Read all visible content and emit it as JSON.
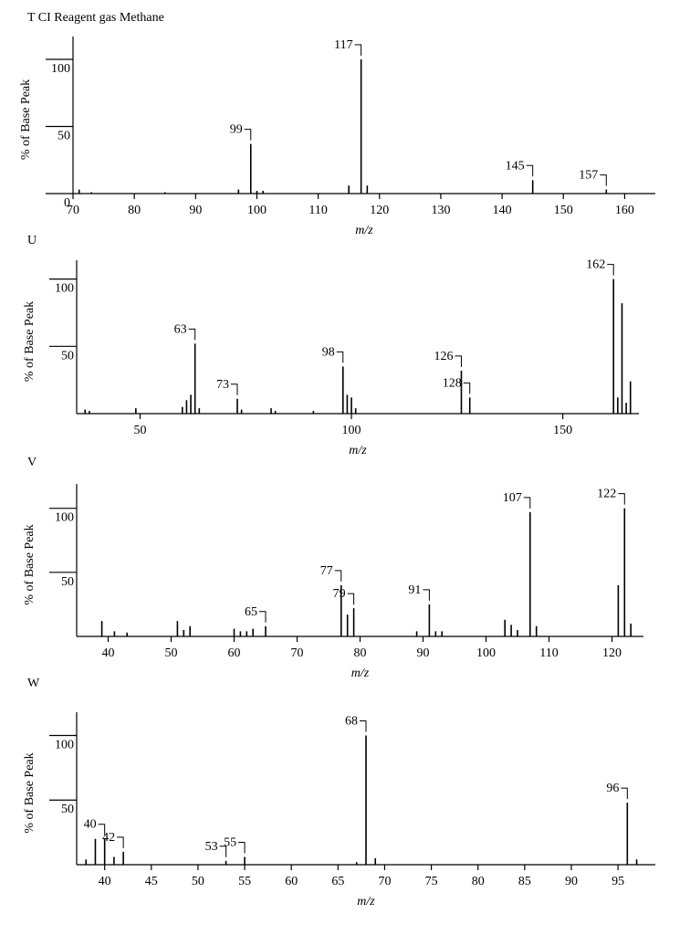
{
  "chart_data": [
    {
      "type": "bar",
      "title": "T CI Reagent gas Methane",
      "xlabel": "m/z",
      "ylabel": "% of Base Peak",
      "color": "#000000",
      "x": [
        71,
        73,
        85,
        97,
        99,
        100,
        101,
        115,
        117,
        118,
        145,
        157
      ],
      "values": [
        3,
        1,
        1,
        3,
        37,
        2,
        2,
        6,
        100,
        6,
        10,
        3
      ],
      "annotations": [
        99,
        117,
        145,
        157
      ],
      "xlim": [
        70,
        165
      ],
      "xticks": [
        70,
        80,
        90,
        100,
        110,
        120,
        130,
        140,
        150,
        160
      ],
      "ylim": [
        0,
        117
      ],
      "yticks": [
        0,
        50,
        100
      ]
    },
    {
      "type": "bar",
      "title": "U",
      "xlabel": "m/z",
      "ylabel": "% of Base Peak",
      "color": "#000000",
      "x": [
        37,
        38,
        49,
        60,
        61,
        62,
        63,
        64,
        73,
        74,
        81,
        82,
        91,
        98,
        99,
        100,
        101,
        126,
        128,
        162,
        163,
        164,
        165,
        166
      ],
      "values": [
        3,
        2,
        4,
        5,
        10,
        14,
        52,
        4,
        11,
        3,
        4,
        2,
        2,
        35,
        14,
        12,
        4,
        32,
        12,
        100,
        12,
        82,
        8,
        24
      ],
      "annotations": [
        63,
        73,
        98,
        126,
        128,
        162
      ],
      "xlim": [
        35,
        168
      ],
      "xticks": [
        50,
        100,
        150
      ],
      "ylim": [
        0,
        114
      ],
      "yticks": [
        50,
        100
      ]
    },
    {
      "type": "bar",
      "title": "V",
      "xlabel": "m/z",
      "ylabel": "% of Base Peak",
      "color": "#000000",
      "x": [
        39,
        41,
        43,
        51,
        52,
        53,
        60,
        61,
        62,
        63,
        65,
        77,
        78,
        79,
        89,
        91,
        92,
        93,
        103,
        104,
        105,
        107,
        108,
        121,
        122,
        123
      ],
      "values": [
        12,
        4,
        3,
        12,
        5,
        8,
        6,
        4,
        4,
        6,
        8,
        40,
        17,
        22,
        4,
        25,
        4,
        4,
        13,
        9,
        5,
        97,
        8,
        40,
        100,
        10
      ],
      "annotations": [
        65,
        77,
        79,
        91,
        107,
        122
      ],
      "xlim": [
        35,
        125
      ],
      "xticks": [
        40,
        50,
        60,
        70,
        80,
        90,
        100,
        110,
        120
      ],
      "ylim": [
        0,
        119
      ],
      "yticks": [
        50,
        100
      ]
    },
    {
      "type": "bar",
      "title": "W",
      "xlabel": "m/z",
      "ylabel": "% of Base Peak",
      "color": "#000000",
      "x": [
        38,
        39,
        40,
        41,
        42,
        53,
        55,
        67,
        68,
        69,
        96,
        97
      ],
      "values": [
        4,
        20,
        20,
        6,
        10,
        3,
        6,
        2,
        100,
        5,
        48,
        4
      ],
      "annotations": [
        40,
        42,
        53,
        55,
        68,
        96
      ],
      "xlim": [
        37,
        99
      ],
      "xticks": [
        40,
        45,
        50,
        55,
        60,
        65,
        70,
        75,
        80,
        85,
        90,
        95
      ],
      "ylim": [
        0,
        118
      ],
      "yticks": [
        50,
        100
      ]
    }
  ]
}
